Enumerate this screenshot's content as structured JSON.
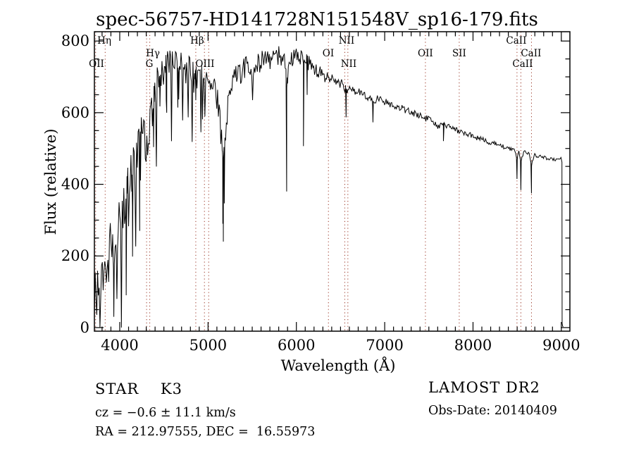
{
  "chart_data": {
    "type": "line",
    "title": "spec-56757-HD141728N151548V_sp16-179.fits",
    "xlabel": "Wavelength (Å)",
    "ylabel": "Flux (relative)",
    "xlim": [
      3713,
      9097
    ],
    "ylim": [
      -10,
      826
    ],
    "x_major_ticks": [
      4000,
      5000,
      6000,
      7000,
      8000,
      9000
    ],
    "x_minor_step": 100,
    "y_major_ticks": [
      0,
      200,
      400,
      600,
      800
    ],
    "y_minor_step": 50,
    "grid": false,
    "trace_color": "#000000",
    "marker_color": "#993322",
    "line_markers": [
      3727,
      3835,
      4304,
      4340,
      4861,
      4959,
      5007,
      6363,
      6548,
      6583,
      7461,
      7844,
      8498,
      8542,
      8662
    ],
    "line_labels": [
      {
        "text": "Hη",
        "wavelength": 3825,
        "row": 1
      },
      {
        "text": "OII",
        "wavelength": 3737,
        "row": 3
      },
      {
        "text": "Hγ",
        "wavelength": 4375,
        "row": 2
      },
      {
        "text": "G",
        "wavelength": 4335,
        "row": 3
      },
      {
        "text": "Hβ",
        "wavelength": 4877,
        "row": 1
      },
      {
        "text": "OIII",
        "wavelength": 4965,
        "row": 3
      },
      {
        "text": "OI",
        "wavelength": 6361,
        "row": 2
      },
      {
        "text": "NII",
        "wavelength": 6568,
        "row": 1
      },
      {
        "text": "NII",
        "wavelength": 6592,
        "row": 3
      },
      {
        "text": "OII",
        "wavelength": 7461,
        "row": 2
      },
      {
        "text": "SII",
        "wavelength": 7844,
        "row": 2
      },
      {
        "text": "CaII",
        "wavelength": 8490,
        "row": 1
      },
      {
        "text": "CaII",
        "wavelength": 8562,
        "row": 3
      },
      {
        "text": "CaII",
        "wavelength": 8657,
        "row": 2
      }
    ],
    "envelope": [
      [
        3713,
        60
      ],
      [
        3722,
        150
      ],
      [
        3732,
        70
      ],
      [
        3745,
        120
      ],
      [
        3760,
        100
      ],
      [
        3775,
        160
      ],
      [
        3790,
        140
      ],
      [
        3805,
        175
      ],
      [
        3820,
        150
      ],
      [
        3835,
        130
      ],
      [
        3850,
        190
      ],
      [
        3865,
        210
      ],
      [
        3880,
        175
      ],
      [
        3900,
        250
      ],
      [
        3920,
        220
      ],
      [
        3933,
        150
      ],
      [
        3950,
        240
      ],
      [
        3968,
        180
      ],
      [
        3985,
        280
      ],
      [
        4000,
        310
      ],
      [
        4020,
        290
      ],
      [
        4045,
        330
      ],
      [
        4070,
        360
      ],
      [
        4100,
        390
      ],
      [
        4130,
        420
      ],
      [
        4160,
        450
      ],
      [
        4200,
        510
      ],
      [
        4240,
        555
      ],
      [
        4270,
        575
      ],
      [
        4300,
        505
      ],
      [
        4320,
        520
      ],
      [
        4340,
        545
      ],
      [
        4365,
        590
      ],
      [
        4390,
        630
      ],
      [
        4420,
        670
      ],
      [
        4450,
        700
      ],
      [
        4480,
        715
      ],
      [
        4510,
        705
      ],
      [
        4540,
        725
      ],
      [
        4570,
        745
      ],
      [
        4600,
        755
      ],
      [
        4630,
        735
      ],
      [
        4660,
        725
      ],
      [
        4700,
        735
      ],
      [
        4740,
        715
      ],
      [
        4780,
        725
      ],
      [
        4820,
        710
      ],
      [
        4861,
        690
      ],
      [
        4900,
        715
      ],
      [
        4940,
        705
      ],
      [
        4980,
        700
      ],
      [
        5020,
        685
      ],
      [
        5060,
        665
      ],
      [
        5100,
        645
      ],
      [
        5140,
        560
      ],
      [
        5170,
        460
      ],
      [
        5200,
        560
      ],
      [
        5240,
        660
      ],
      [
        5280,
        690
      ],
      [
        5330,
        705
      ],
      [
        5390,
        720
      ],
      [
        5450,
        725
      ],
      [
        5520,
        732
      ],
      [
        5590,
        740
      ],
      [
        5660,
        748
      ],
      [
        5730,
        752
      ],
      [
        5800,
        758
      ],
      [
        5860,
        748
      ],
      [
        5890,
        680
      ],
      [
        5915,
        745
      ],
      [
        5950,
        752
      ],
      [
        6000,
        758
      ],
      [
        6060,
        750
      ],
      [
        6120,
        740
      ],
      [
        6180,
        728
      ],
      [
        6250,
        712
      ],
      [
        6320,
        700
      ],
      [
        6390,
        692
      ],
      [
        6460,
        685
      ],
      [
        6520,
        678
      ],
      [
        6563,
        662
      ],
      [
        6610,
        668
      ],
      [
        6680,
        660
      ],
      [
        6750,
        652
      ],
      [
        6820,
        644
      ],
      [
        6867,
        628
      ],
      [
        6910,
        640
      ],
      [
        6970,
        634
      ],
      [
        7040,
        627
      ],
      [
        7110,
        620
      ],
      [
        7180,
        613
      ],
      [
        7250,
        606
      ],
      [
        7320,
        599
      ],
      [
        7390,
        592
      ],
      [
        7460,
        585
      ],
      [
        7530,
        577
      ],
      [
        7580,
        565
      ],
      [
        7610,
        558
      ],
      [
        7650,
        567
      ],
      [
        7720,
        561
      ],
      [
        7790,
        554
      ],
      [
        7860,
        547
      ],
      [
        7930,
        541
      ],
      [
        8000,
        534
      ],
      [
        8070,
        528
      ],
      [
        8140,
        522
      ],
      [
        8210,
        516
      ],
      [
        8280,
        510
      ],
      [
        8350,
        504
      ],
      [
        8420,
        498
      ],
      [
        8470,
        494
      ],
      [
        8498,
        470
      ],
      [
        8515,
        492
      ],
      [
        8542,
        462
      ],
      [
        8570,
        489
      ],
      [
        8610,
        486
      ],
      [
        8640,
        484
      ],
      [
        8662,
        455
      ],
      [
        8690,
        482
      ],
      [
        8750,
        478
      ],
      [
        8820,
        474
      ],
      [
        8890,
        470
      ],
      [
        8950,
        468
      ],
      [
        9000,
        472
      ],
      [
        9006,
        465
      ]
    ],
    "noise_profile": [
      [
        3713,
        65
      ],
      [
        3850,
        70
      ],
      [
        4000,
        72
      ],
      [
        4200,
        68
      ],
      [
        4400,
        60
      ],
      [
        4600,
        42
      ],
      [
        4900,
        38
      ],
      [
        5200,
        36
      ],
      [
        5500,
        32
      ],
      [
        5800,
        28
      ],
      [
        6100,
        24
      ],
      [
        6400,
        18
      ],
      [
        6600,
        12
      ],
      [
        7000,
        10
      ],
      [
        7400,
        9
      ],
      [
        7800,
        8
      ],
      [
        8200,
        7
      ],
      [
        8600,
        6
      ],
      [
        9000,
        4
      ]
    ],
    "absorption_dips": [
      [
        3933,
        120
      ],
      [
        3968,
        100
      ],
      [
        4077,
        110
      ],
      [
        4144,
        95
      ],
      [
        4226,
        105
      ],
      [
        4383,
        115
      ],
      [
        4455,
        85
      ],
      [
        4526,
        80
      ],
      [
        4668,
        90
      ],
      [
        4861,
        55
      ],
      [
        5167,
        180
      ],
      [
        5173,
        230
      ],
      [
        5184,
        160
      ],
      [
        5890,
        300
      ],
      [
        6080,
        240
      ],
      [
        6122,
        90
      ],
      [
        6563,
        75
      ],
      [
        6867,
        55
      ],
      [
        7665,
        45
      ],
      [
        8498,
        55
      ],
      [
        8542,
        78
      ],
      [
        8662,
        80
      ]
    ],
    "cutoff": [
      [
        9007,
        462
      ],
      [
        9009,
        12
      ],
      [
        9015,
        4
      ],
      [
        9021,
        2
      ]
    ]
  },
  "footer": {
    "class_label": "STAR    K3",
    "cz_label": "cz = −0.6 ± 11.1 km/s",
    "radec_label": "RA = 212.97555, DEC =  16.55973",
    "survey_label": "LAMOST DR2",
    "obsdate_label": "Obs-Date: 20140409"
  }
}
